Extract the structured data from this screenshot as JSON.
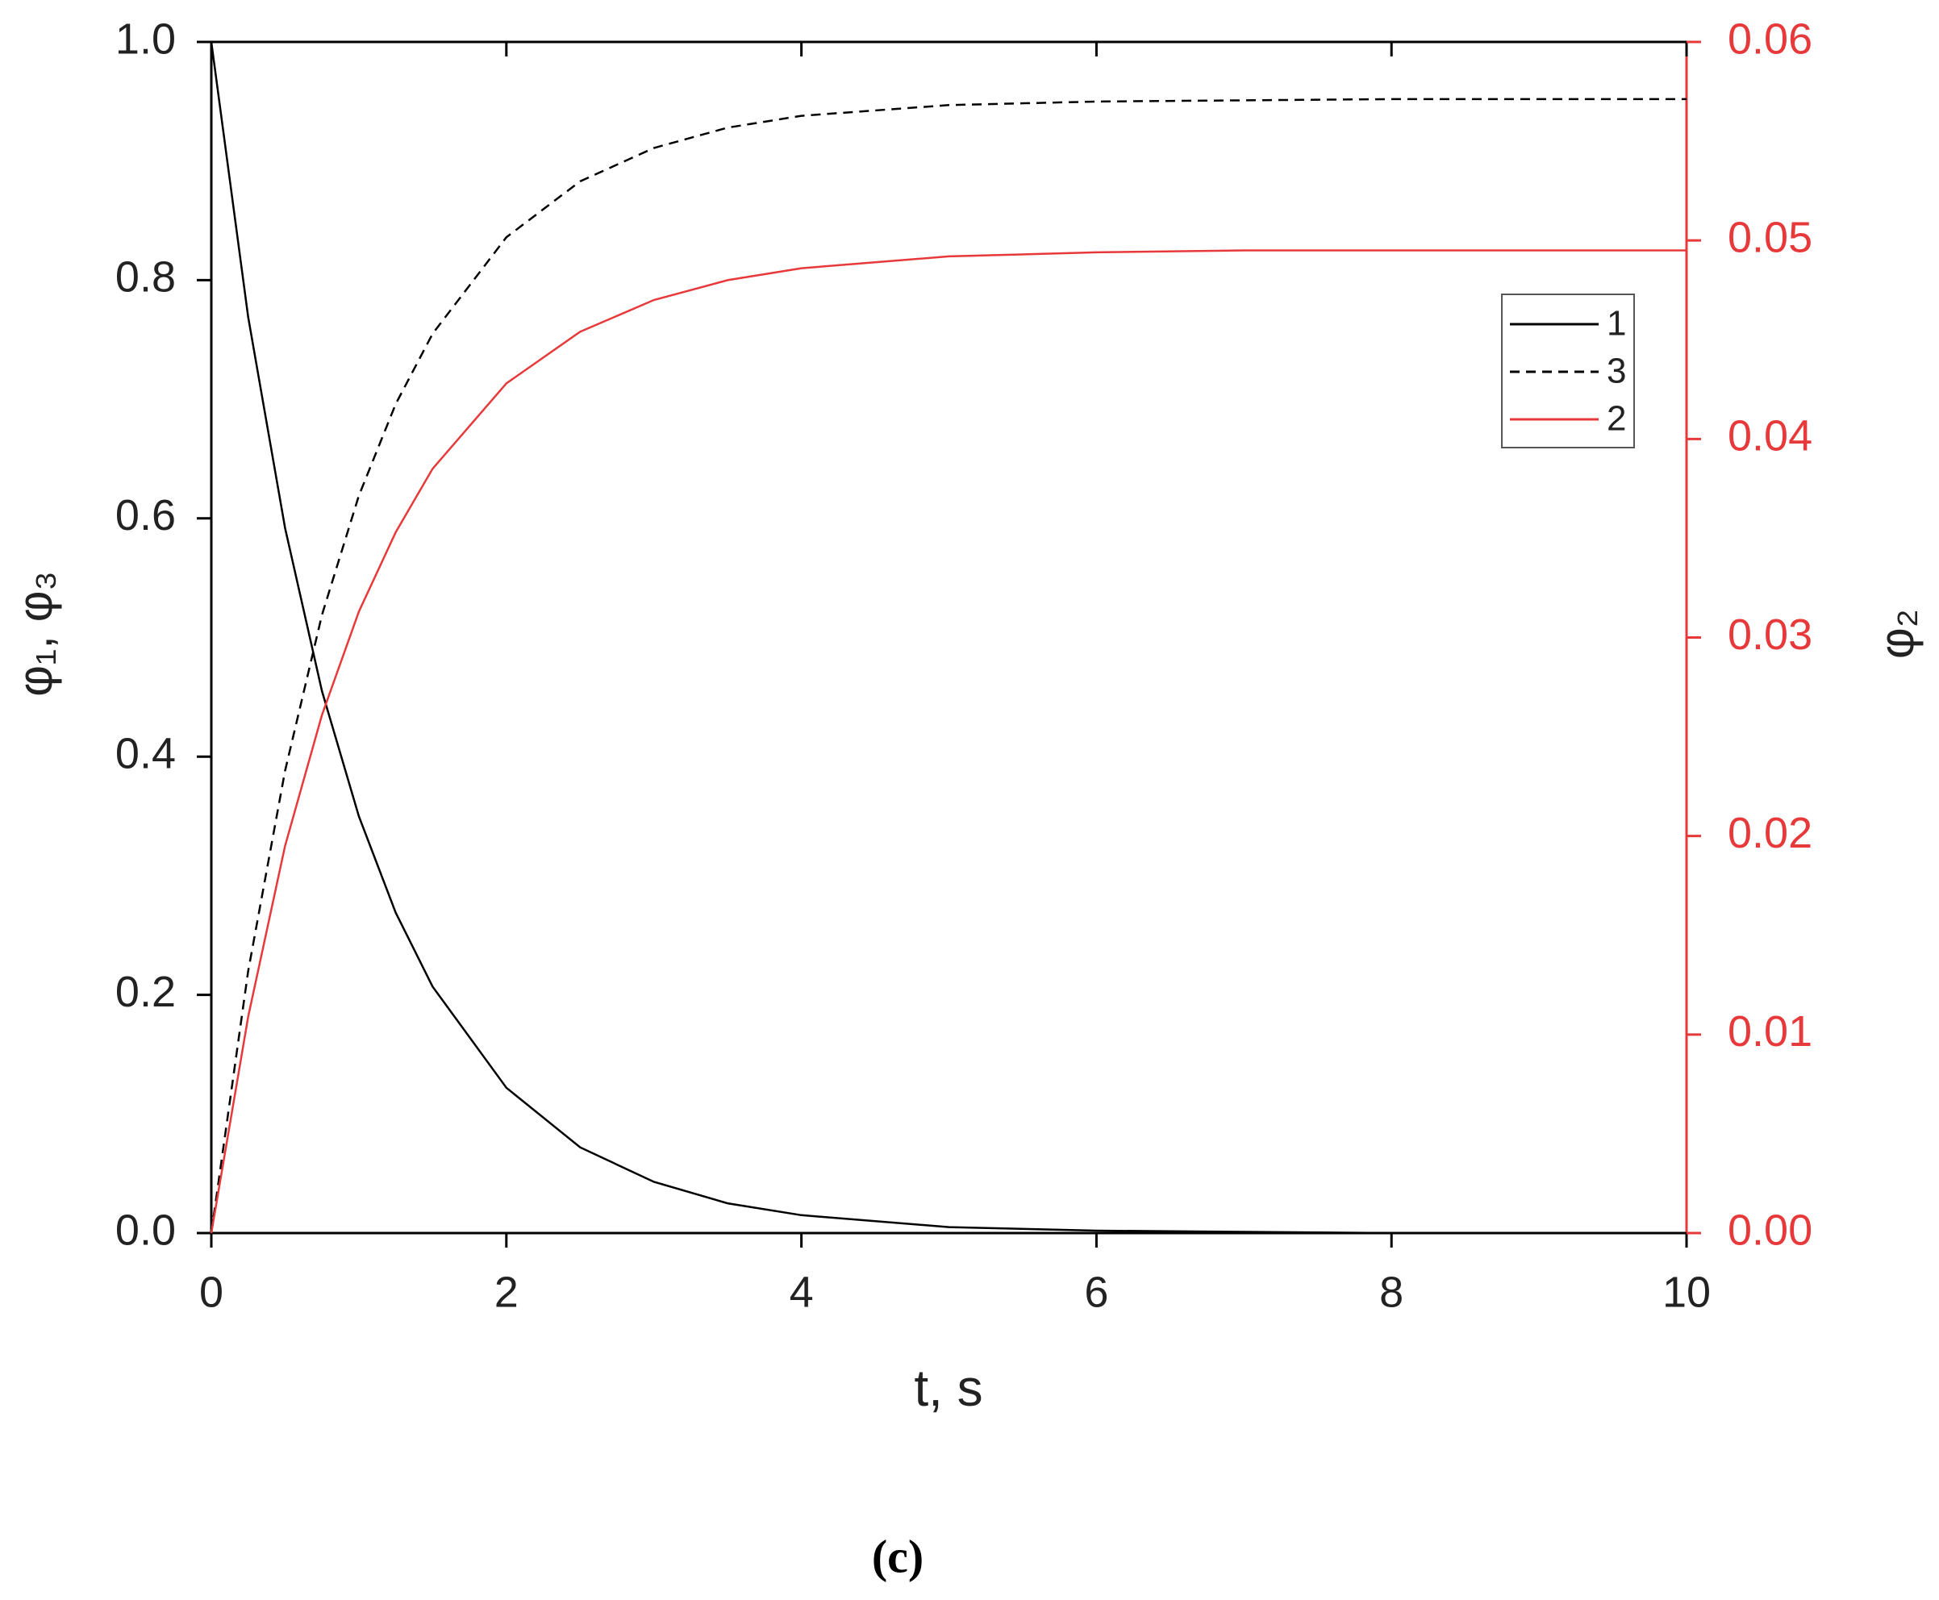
{
  "chart_data": {
    "type": "line",
    "x_label": "t, s",
    "y_label": "φ₁, φ₃",
    "y2_label": "φ₂",
    "caption": "(c)",
    "x": [
      0,
      0.25,
      0.5,
      0.75,
      1,
      1.25,
      1.5,
      2,
      2.5,
      3,
      3.5,
      4,
      5,
      6,
      7,
      8,
      9,
      10
    ],
    "series": [
      {
        "name": "1",
        "color": "#000000",
        "dash": false,
        "values": [
          1,
          0.769,
          0.592,
          0.455,
          0.35,
          0.269,
          0.207,
          0.122,
          0.072,
          0.043,
          0.025,
          0.015,
          0.005,
          0.002,
          0.001,
          0,
          0,
          0
        ]
      },
      {
        "name": "3",
        "color": "#000000",
        "dash": true,
        "values": [
          0,
          0.22,
          0.388,
          0.519,
          0.619,
          0.696,
          0.755,
          0.836,
          0.883,
          0.911,
          0.928,
          0.938,
          0.947,
          0.95,
          0.951,
          0.952,
          0.952,
          0.952
        ]
      },
      {
        "name": "2",
        "color": "#e8393a",
        "dash": false,
        "axis": "y2",
        "values": [
          0,
          0.0109,
          0.0195,
          0.0261,
          0.0313,
          0.0353,
          0.0385,
          0.0428,
          0.0454,
          0.047,
          0.048,
          0.0486,
          0.0492,
          0.0494,
          0.0495,
          0.0495,
          0.0495,
          0.0495
        ]
      }
    ],
    "xlim": [
      0,
      10
    ],
    "xticks": [
      0,
      2,
      4,
      6,
      8,
      10
    ],
    "ylim": [
      0,
      1
    ],
    "yticks": [
      {
        "value": 0,
        "label": "0.0"
      },
      0.2,
      0.4,
      0.6,
      0.8,
      {
        "value": 1,
        "label": "1.0"
      }
    ],
    "y2lim": [
      0,
      0.06
    ],
    "y2ticks": [
      {
        "value": 0,
        "label": "0.00"
      },
      {
        "value": 0.01,
        "label": "0.01"
      },
      {
        "value": 0.02,
        "label": "0.02"
      },
      {
        "value": 0.03,
        "label": "0.03"
      },
      {
        "value": 0.04,
        "label": "0.04"
      },
      {
        "value": 0.05,
        "label": "0.05"
      },
      {
        "value": 0.06,
        "label": "0.06"
      }
    ],
    "y2_color": "#e8393a"
  }
}
